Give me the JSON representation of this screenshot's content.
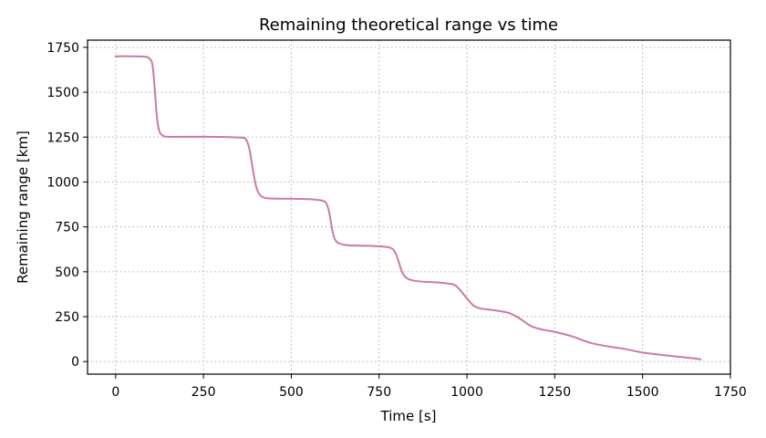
{
  "chart_data": {
    "type": "line",
    "title": "Remaining theoretical range vs time",
    "xlabel": "Time [s]",
    "ylabel": "Remaining range [km]",
    "xlim": [
      -80,
      1750
    ],
    "ylim": [
      -70,
      1790
    ],
    "xticks": [
      0,
      250,
      500,
      750,
      1000,
      1250,
      1500,
      1750
    ],
    "yticks": [
      0,
      250,
      500,
      750,
      1000,
      1250,
      1500,
      1750
    ],
    "grid": true,
    "series": [
      {
        "color": "#cc79a7",
        "x": [
          0,
          40,
          80,
          95,
          105,
          112,
          118,
          125,
          135,
          150,
          200,
          250,
          300,
          350,
          370,
          380,
          388,
          395,
          402,
          410,
          420,
          440,
          480,
          520,
          560,
          590,
          600,
          608,
          615,
          622,
          630,
          640,
          660,
          700,
          740,
          780,
          795,
          805,
          815,
          825,
          835,
          850,
          880,
          920,
          960,
          975,
          990,
          1005,
          1020,
          1040,
          1080,
          1120,
          1150,
          1180,
          1210,
          1250,
          1300,
          1350,
          1400,
          1450,
          1500,
          1550,
          1600,
          1650,
          1665
        ],
        "y": [
          1700,
          1700,
          1698,
          1690,
          1650,
          1500,
          1350,
          1280,
          1258,
          1252,
          1252,
          1252,
          1251,
          1248,
          1240,
          1190,
          1100,
          1020,
          960,
          930,
          915,
          908,
          907,
          906,
          903,
          895,
          880,
          830,
          750,
          690,
          665,
          655,
          648,
          645,
          643,
          635,
          610,
          560,
          500,
          470,
          458,
          450,
          444,
          440,
          430,
          410,
          375,
          340,
          310,
          295,
          285,
          270,
          240,
          200,
          180,
          165,
          140,
          105,
          85,
          70,
          50,
          38,
          27,
          17,
          12
        ]
      }
    ]
  }
}
